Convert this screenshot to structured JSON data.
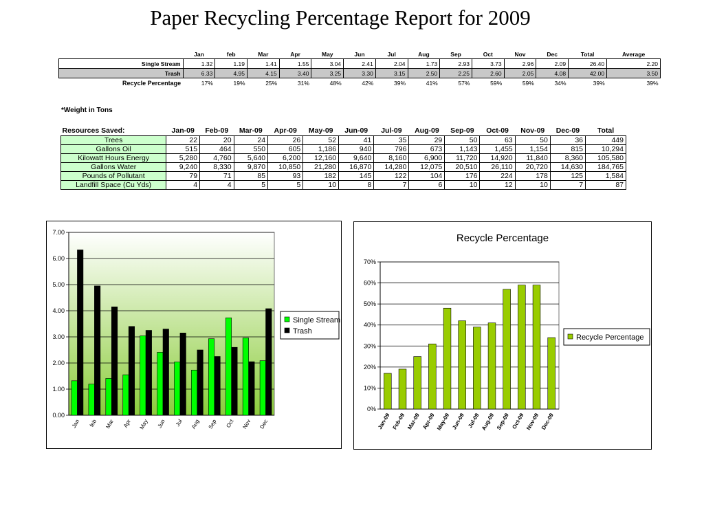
{
  "title": "Paper Recycling Percentage Report for 2009",
  "table1": {
    "months": [
      "Jan",
      "feb",
      "Mar",
      "Apr",
      "May",
      "Jun",
      "Jul",
      "Aug",
      "Sep",
      "Oct",
      "Nov",
      "Dec",
      "Total",
      "Average"
    ],
    "rows": [
      {
        "label": "Single Stream",
        "values": [
          "1.32",
          "1.19",
          "1.41",
          "1.55",
          "3.04",
          "2.41",
          "2.04",
          "1.73",
          "2.93",
          "3.73",
          "2.96",
          "2.09",
          "26.40",
          "2.20"
        ]
      },
      {
        "label": "Trash",
        "values": [
          "6.33",
          "4.95",
          "4.15",
          "3.40",
          "3.25",
          "3.30",
          "3.15",
          "2.50",
          "2.25",
          "2.60",
          "2.05",
          "4.08",
          "42.00",
          "3.50"
        ]
      },
      {
        "label": "Recycle Percentage",
        "values": [
          "17%",
          "19%",
          "25%",
          "31%",
          "48%",
          "42%",
          "39%",
          "41%",
          "57%",
          "59%",
          "59%",
          "34%",
          "39%",
          "39%"
        ]
      }
    ]
  },
  "note": "*Weight in Tons",
  "table2": {
    "header_label": "Resources Saved:",
    "months": [
      "Jan-09",
      "Feb-09",
      "Mar-09",
      "Apr-09",
      "May-09",
      "Jun-09",
      "Jul-09",
      "Aug-09",
      "Sep-09",
      "Oct-09",
      "Nov-09",
      "Dec-09",
      "Total"
    ],
    "rows": [
      {
        "label": "Trees",
        "values": [
          "22",
          "20",
          "24",
          "26",
          "52",
          "41",
          "35",
          "29",
          "50",
          "63",
          "50",
          "36",
          "449"
        ]
      },
      {
        "label": "Gallons Oil",
        "values": [
          "515",
          "464",
          "550",
          "605",
          "1,186",
          "940",
          "796",
          "673",
          "1,143",
          "1,455",
          "1,154",
          "815",
          "10,294"
        ]
      },
      {
        "label": "Kilowatt Hours Energy",
        "values": [
          "5,280",
          "4,760",
          "5,640",
          "6,200",
          "12,160",
          "9,640",
          "8,160",
          "6,900",
          "11,720",
          "14,920",
          "11,840",
          "8,360",
          "105,580"
        ]
      },
      {
        "label": "Gallons Water",
        "values": [
          "9,240",
          "8,330",
          "9,870",
          "10,850",
          "21,280",
          "16,870",
          "14,280",
          "12,075",
          "20,510",
          "26,110",
          "20,720",
          "14,630",
          "184,765"
        ]
      },
      {
        "label": "Pounds of Pollutant",
        "values": [
          "79",
          "71",
          "85",
          "93",
          "182",
          "145",
          "122",
          "104",
          "176",
          "224",
          "178",
          "125",
          "1,584"
        ]
      },
      {
        "label": "Landfill Space (Cu Yds)",
        "values": [
          "4",
          "4",
          "5",
          "5",
          "10",
          "8",
          "7",
          "6",
          "10",
          "12",
          "10",
          "7",
          "87"
        ]
      }
    ]
  },
  "chart_data": [
    {
      "type": "bar",
      "title": "",
      "categories": [
        "Jan",
        "feb",
        "Mar",
        "Apr",
        "May",
        "Jun",
        "Jul",
        "Aug",
        "Sep",
        "Oct",
        "Nov",
        "Dec"
      ],
      "series": [
        {
          "name": "Single Stream",
          "color": "#00ff00",
          "values": [
            1.32,
            1.19,
            1.41,
            1.55,
            3.04,
            2.41,
            2.04,
            1.73,
            2.93,
            3.73,
            2.96,
            2.09
          ]
        },
        {
          "name": "Trash",
          "color": "#000000",
          "values": [
            6.33,
            4.95,
            4.15,
            3.4,
            3.25,
            3.3,
            3.15,
            2.5,
            2.25,
            2.6,
            2.05,
            4.08
          ]
        }
      ],
      "ylim": [
        0,
        7
      ],
      "yticks": [
        "0.00",
        "1.00",
        "2.00",
        "3.00",
        "4.00",
        "5.00",
        "6.00",
        "7.00"
      ],
      "legend": "right",
      "grid": true
    },
    {
      "type": "bar",
      "title": "Recycle Percentage",
      "categories": [
        "Jan-09",
        "Feb-09",
        "Mar-09",
        "Apr-09",
        "May-09",
        "Jun-09",
        "Jul-09",
        "Aug-09",
        "Sep-09",
        "Oct-09",
        "Nov-09",
        "Dec-09"
      ],
      "series": [
        {
          "name": "Recycle Percentage",
          "color": "#99cc00",
          "values": [
            17,
            19,
            25,
            31,
            48,
            42,
            39,
            41,
            57,
            59,
            59,
            34
          ]
        }
      ],
      "ylim": [
        0,
        70
      ],
      "yticks": [
        "0%",
        "10%",
        "20%",
        "30%",
        "40%",
        "50%",
        "60%",
        "70%"
      ],
      "legend": "right",
      "grid": true
    }
  ]
}
